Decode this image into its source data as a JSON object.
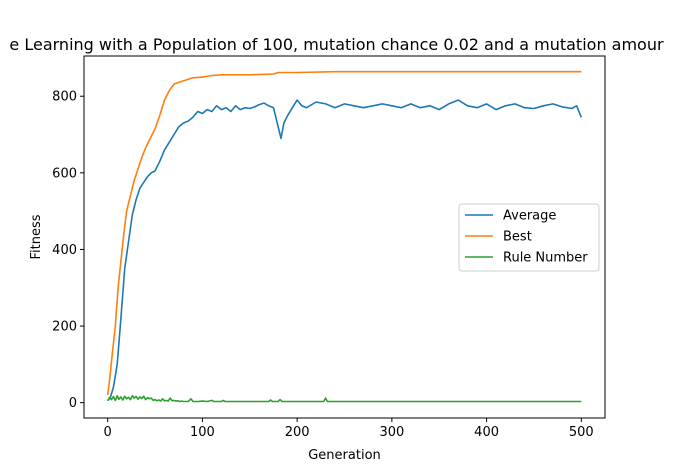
{
  "chart_data": {
    "type": "line",
    "title": "e Learning with a Population of 100, mutation chance 0.02 and a mutation amour",
    "xlabel": "Generation",
    "ylabel": "Fitness",
    "xlim": [
      -25,
      525
    ],
    "ylim": [
      -40,
      905
    ],
    "xticks": [
      0,
      100,
      200,
      300,
      400,
      500
    ],
    "yticks": [
      0,
      200,
      400,
      600,
      800
    ],
    "xtick_labels": [
      "0",
      "100",
      "200",
      "300",
      "400",
      "500"
    ],
    "ytick_labels": [
      "0",
      "200",
      "400",
      "600",
      "800"
    ],
    "grid": false,
    "legend_position": "center-right",
    "series": [
      {
        "name": "Average",
        "color": "#1f77b4",
        "points": [
          [
            0,
            5
          ],
          [
            3,
            15
          ],
          [
            6,
            40
          ],
          [
            10,
            100
          ],
          [
            14,
            220
          ],
          [
            18,
            350
          ],
          [
            22,
            420
          ],
          [
            26,
            490
          ],
          [
            30,
            530
          ],
          [
            34,
            560
          ],
          [
            38,
            575
          ],
          [
            42,
            590
          ],
          [
            46,
            600
          ],
          [
            50,
            605
          ],
          [
            55,
            630
          ],
          [
            60,
            660
          ],
          [
            65,
            680
          ],
          [
            70,
            700
          ],
          [
            75,
            720
          ],
          [
            80,
            730
          ],
          [
            85,
            735
          ],
          [
            90,
            745
          ],
          [
            95,
            760
          ],
          [
            100,
            755
          ],
          [
            105,
            765
          ],
          [
            110,
            760
          ],
          [
            115,
            775
          ],
          [
            120,
            765
          ],
          [
            125,
            770
          ],
          [
            130,
            760
          ],
          [
            135,
            775
          ],
          [
            140,
            765
          ],
          [
            145,
            770
          ],
          [
            150,
            768
          ],
          [
            155,
            772
          ],
          [
            160,
            778
          ],
          [
            165,
            782
          ],
          [
            170,
            775
          ],
          [
            175,
            770
          ],
          [
            180,
            720
          ],
          [
            183,
            690
          ],
          [
            186,
            730
          ],
          [
            190,
            750
          ],
          [
            195,
            770
          ],
          [
            200,
            790
          ],
          [
            205,
            775
          ],
          [
            210,
            770
          ],
          [
            220,
            785
          ],
          [
            230,
            780
          ],
          [
            240,
            770
          ],
          [
            250,
            780
          ],
          [
            260,
            775
          ],
          [
            270,
            770
          ],
          [
            280,
            775
          ],
          [
            290,
            780
          ],
          [
            300,
            775
          ],
          [
            310,
            770
          ],
          [
            320,
            780
          ],
          [
            330,
            770
          ],
          [
            340,
            775
          ],
          [
            350,
            765
          ],
          [
            360,
            780
          ],
          [
            370,
            790
          ],
          [
            380,
            775
          ],
          [
            390,
            770
          ],
          [
            400,
            780
          ],
          [
            410,
            765
          ],
          [
            420,
            775
          ],
          [
            430,
            780
          ],
          [
            440,
            770
          ],
          [
            450,
            768
          ],
          [
            460,
            775
          ],
          [
            470,
            780
          ],
          [
            480,
            772
          ],
          [
            490,
            768
          ],
          [
            495,
            775
          ],
          [
            500,
            745
          ]
        ]
      },
      {
        "name": "Best",
        "color": "#ff7f0e",
        "points": [
          [
            0,
            20
          ],
          [
            2,
            60
          ],
          [
            5,
            130
          ],
          [
            8,
            200
          ],
          [
            11,
            300
          ],
          [
            14,
            370
          ],
          [
            17,
            440
          ],
          [
            20,
            500
          ],
          [
            24,
            540
          ],
          [
            28,
            580
          ],
          [
            32,
            610
          ],
          [
            36,
            640
          ],
          [
            40,
            665
          ],
          [
            45,
            690
          ],
          [
            50,
            715
          ],
          [
            55,
            750
          ],
          [
            60,
            790
          ],
          [
            65,
            815
          ],
          [
            70,
            832
          ],
          [
            80,
            840
          ],
          [
            90,
            848
          ],
          [
            100,
            850
          ],
          [
            110,
            854
          ],
          [
            120,
            856
          ],
          [
            150,
            856
          ],
          [
            175,
            858
          ],
          [
            180,
            862
          ],
          [
            200,
            862
          ],
          [
            240,
            864
          ],
          [
            300,
            864
          ],
          [
            400,
            864
          ],
          [
            500,
            864
          ]
        ]
      },
      {
        "name": "Rule Number",
        "color": "#2ca02c",
        "points": [
          [
            0,
            5
          ],
          [
            2,
            14
          ],
          [
            4,
            8
          ],
          [
            6,
            16
          ],
          [
            8,
            6
          ],
          [
            10,
            18
          ],
          [
            12,
            9
          ],
          [
            14,
            15
          ],
          [
            16,
            7
          ],
          [
            18,
            17
          ],
          [
            20,
            10
          ],
          [
            22,
            14
          ],
          [
            24,
            8
          ],
          [
            26,
            18
          ],
          [
            28,
            12
          ],
          [
            30,
            16
          ],
          [
            32,
            9
          ],
          [
            34,
            15
          ],
          [
            36,
            11
          ],
          [
            38,
            17
          ],
          [
            40,
            8
          ],
          [
            42,
            13
          ],
          [
            44,
            10
          ],
          [
            46,
            12
          ],
          [
            48,
            6
          ],
          [
            50,
            8
          ],
          [
            52,
            5
          ],
          [
            54,
            7
          ],
          [
            56,
            4
          ],
          [
            58,
            10
          ],
          [
            60,
            5
          ],
          [
            62,
            6
          ],
          [
            64,
            4
          ],
          [
            66,
            12
          ],
          [
            68,
            5
          ],
          [
            70,
            6
          ],
          [
            72,
            4
          ],
          [
            74,
            5
          ],
          [
            76,
            3
          ],
          [
            78,
            4
          ],
          [
            80,
            3
          ],
          [
            85,
            3
          ],
          [
            88,
            10
          ],
          [
            90,
            3
          ],
          [
            95,
            3
          ],
          [
            100,
            4
          ],
          [
            105,
            3
          ],
          [
            110,
            6
          ],
          [
            112,
            3
          ],
          [
            120,
            3
          ],
          [
            122,
            6
          ],
          [
            124,
            3
          ],
          [
            170,
            3
          ],
          [
            172,
            7
          ],
          [
            174,
            3
          ],
          [
            180,
            3
          ],
          [
            182,
            8
          ],
          [
            184,
            3
          ],
          [
            228,
            3
          ],
          [
            230,
            12
          ],
          [
            232,
            3
          ],
          [
            300,
            3
          ],
          [
            400,
            3
          ],
          [
            500,
            3
          ]
        ]
      }
    ]
  }
}
